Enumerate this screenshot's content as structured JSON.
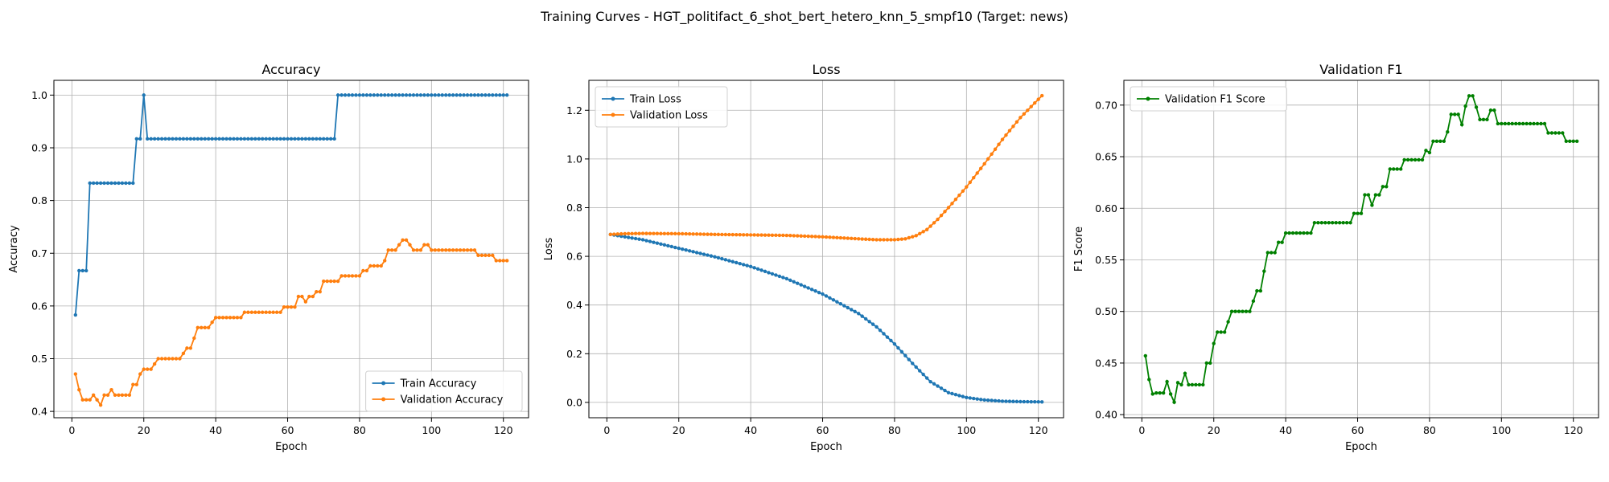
{
  "figure_title": "Training Curves - HGT_politifact_6_shot_bert_hetero_knn_5_smpf10 (Target: news)",
  "colors": {
    "train": "#1f77b4",
    "validation": "#ff7f0e",
    "f1": "#008000",
    "grid": "#b0b0b0"
  },
  "chart_data": [
    {
      "type": "line",
      "title": "Accuracy",
      "xlabel": "Epoch",
      "ylabel": "Accuracy",
      "xlim": [
        -5,
        127
      ],
      "ylim": [
        0.388,
        1.028
      ],
      "xticks": [
        0,
        20,
        40,
        60,
        80,
        100,
        120
      ],
      "yticks": [
        0.4,
        0.5,
        0.6,
        0.7,
        0.8,
        0.9,
        1.0
      ],
      "grid": true,
      "legend_loc": "lower-right",
      "series": [
        {
          "name": "Train Accuracy",
          "color": "#1f77b4",
          "segments": [
            [
              1,
              0.583
            ],
            [
              2,
              0.667
            ],
            [
              4,
              0.667
            ],
            [
              5,
              0.833
            ],
            [
              17,
              0.833
            ],
            [
              18,
              0.917
            ],
            [
              19,
              0.917
            ],
            [
              20,
              1.0
            ],
            [
              21,
              0.917
            ],
            [
              73,
              0.917
            ],
            [
              74,
              1.0
            ],
            [
              121,
              1.0
            ]
          ]
        },
        {
          "name": "Validation Accuracy",
          "color": "#ff7f0e",
          "points": [
            [
              1,
              0.471
            ],
            [
              2,
              0.441
            ],
            [
              3,
              0.422
            ],
            [
              5,
              0.422
            ],
            [
              6,
              0.431
            ],
            [
              7,
              0.422
            ],
            [
              8,
              0.412
            ],
            [
              9,
              0.431
            ],
            [
              10,
              0.431
            ],
            [
              11,
              0.441
            ],
            [
              12,
              0.431
            ],
            [
              16,
              0.431
            ],
            [
              17,
              0.451
            ],
            [
              18,
              0.451
            ],
            [
              19,
              0.471
            ],
            [
              20,
              0.48
            ],
            [
              22,
              0.48
            ],
            [
              23,
              0.49
            ],
            [
              24,
              0.5
            ],
            [
              30,
              0.5
            ],
            [
              31,
              0.51
            ],
            [
              32,
              0.52
            ],
            [
              33,
              0.52
            ],
            [
              34,
              0.539
            ],
            [
              35,
              0.559
            ],
            [
              38,
              0.559
            ],
            [
              39,
              0.569
            ],
            [
              40,
              0.578
            ],
            [
              47,
              0.578
            ],
            [
              48,
              0.588
            ],
            [
              58,
              0.588
            ],
            [
              59,
              0.598
            ],
            [
              62,
              0.598
            ],
            [
              63,
              0.618
            ],
            [
              64,
              0.618
            ],
            [
              65,
              0.608
            ],
            [
              66,
              0.618
            ],
            [
              67,
              0.618
            ],
            [
              68,
              0.627
            ],
            [
              69,
              0.627
            ],
            [
              70,
              0.647
            ],
            [
              74,
              0.647
            ],
            [
              75,
              0.657
            ],
            [
              80,
              0.657
            ],
            [
              81,
              0.667
            ],
            [
              82,
              0.667
            ],
            [
              83,
              0.676
            ],
            [
              86,
              0.676
            ],
            [
              87,
              0.686
            ],
            [
              88,
              0.706
            ],
            [
              90,
              0.706
            ],
            [
              91,
              0.716
            ],
            [
              92,
              0.725
            ],
            [
              93,
              0.725
            ],
            [
              94,
              0.716
            ],
            [
              95,
              0.706
            ],
            [
              97,
              0.706
            ],
            [
              98,
              0.716
            ],
            [
              99,
              0.716
            ],
            [
              100,
              0.706
            ],
            [
              112,
              0.706
            ],
            [
              113,
              0.696
            ],
            [
              117,
              0.696
            ],
            [
              118,
              0.686
            ],
            [
              121,
              0.686
            ]
          ]
        }
      ]
    },
    {
      "type": "line",
      "title": "Loss",
      "xlabel": "Epoch",
      "ylabel": "Loss",
      "xlim": [
        -5,
        127
      ],
      "ylim": [
        -0.063,
        1.323
      ],
      "xticks": [
        0,
        20,
        40,
        60,
        80,
        100,
        120
      ],
      "yticks": [
        0.0,
        0.2,
        0.4,
        0.6,
        0.8,
        1.0,
        1.2
      ],
      "grid": true,
      "legend_loc": "upper-left",
      "series": [
        {
          "name": "Train Loss",
          "color": "#1f77b4",
          "points": [
            [
              1,
              0.69
            ],
            [
              10,
              0.668
            ],
            [
              20,
              0.633
            ],
            [
              30,
              0.598
            ],
            [
              40,
              0.558
            ],
            [
              50,
              0.508
            ],
            [
              60,
              0.445
            ],
            [
              70,
              0.365
            ],
            [
              75,
              0.31
            ],
            [
              80,
              0.24
            ],
            [
              85,
              0.16
            ],
            [
              90,
              0.085
            ],
            [
              95,
              0.04
            ],
            [
              100,
              0.02
            ],
            [
              105,
              0.01
            ],
            [
              110,
              0.005
            ],
            [
              115,
              0.003
            ],
            [
              121,
              0.002
            ]
          ]
        },
        {
          "name": "Validation Loss",
          "color": "#ff7f0e",
          "points": [
            [
              1,
              0.69
            ],
            [
              5,
              0.693
            ],
            [
              10,
              0.694
            ],
            [
              20,
              0.693
            ],
            [
              30,
              0.69
            ],
            [
              40,
              0.688
            ],
            [
              50,
              0.686
            ],
            [
              60,
              0.68
            ],
            [
              70,
              0.672
            ],
            [
              75,
              0.668
            ],
            [
              80,
              0.668
            ],
            [
              83,
              0.672
            ],
            [
              86,
              0.685
            ],
            [
              89,
              0.71
            ],
            [
              92,
              0.752
            ],
            [
              95,
              0.8
            ],
            [
              100,
              0.885
            ],
            [
              105,
              0.98
            ],
            [
              110,
              1.08
            ],
            [
              115,
              1.17
            ],
            [
              121,
              1.26
            ]
          ]
        }
      ]
    },
    {
      "type": "line",
      "title": "Validation F1",
      "xlabel": "Epoch",
      "ylabel": "F1 Score",
      "xlim": [
        -5,
        127
      ],
      "ylim": [
        0.397,
        0.724
      ],
      "xticks": [
        0,
        20,
        40,
        60,
        80,
        100,
        120
      ],
      "yticks": [
        0.4,
        0.45,
        0.5,
        0.55,
        0.6,
        0.65,
        0.7
      ],
      "grid": true,
      "legend_loc": "upper-left",
      "series": [
        {
          "name": "Validation F1 Score",
          "color": "#008000",
          "points": [
            [
              1,
              0.457
            ],
            [
              2,
              0.434
            ],
            [
              3,
              0.42
            ],
            [
              4,
              0.421
            ],
            [
              6,
              0.421
            ],
            [
              7,
              0.432
            ],
            [
              8,
              0.42
            ],
            [
              9,
              0.412
            ],
            [
              10,
              0.431
            ],
            [
              11,
              0.429
            ],
            [
              12,
              0.44
            ],
            [
              13,
              0.429
            ],
            [
              17,
              0.429
            ],
            [
              18,
              0.45
            ],
            [
              19,
              0.45
            ],
            [
              20,
              0.469
            ],
            [
              21,
              0.48
            ],
            [
              23,
              0.48
            ],
            [
              24,
              0.49
            ],
            [
              25,
              0.5
            ],
            [
              30,
              0.5
            ],
            [
              31,
              0.51
            ],
            [
              32,
              0.52
            ],
            [
              33,
              0.52
            ],
            [
              34,
              0.539
            ],
            [
              35,
              0.557
            ],
            [
              37,
              0.557
            ],
            [
              38,
              0.567
            ],
            [
              39,
              0.567
            ],
            [
              40,
              0.576
            ],
            [
              47,
              0.576
            ],
            [
              48,
              0.586
            ],
            [
              58,
              0.586
            ],
            [
              59,
              0.595
            ],
            [
              61,
              0.595
            ],
            [
              62,
              0.613
            ],
            [
              63,
              0.613
            ],
            [
              64,
              0.603
            ],
            [
              65,
              0.613
            ],
            [
              66,
              0.613
            ],
            [
              67,
              0.621
            ],
            [
              68,
              0.621
            ],
            [
              69,
              0.638
            ],
            [
              72,
              0.638
            ],
            [
              73,
              0.647
            ],
            [
              78,
              0.647
            ],
            [
              79,
              0.656
            ],
            [
              80,
              0.654
            ],
            [
              81,
              0.665
            ],
            [
              84,
              0.665
            ],
            [
              85,
              0.674
            ],
            [
              86,
              0.691
            ],
            [
              88,
              0.691
            ],
            [
              89,
              0.681
            ],
            [
              90,
              0.699
            ],
            [
              91,
              0.709
            ],
            [
              92,
              0.709
            ],
            [
              93,
              0.698
            ],
            [
              94,
              0.686
            ],
            [
              96,
              0.686
            ],
            [
              97,
              0.695
            ],
            [
              98,
              0.695
            ],
            [
              99,
              0.682
            ],
            [
              111,
              0.682
            ],
            [
              112,
              0.682
            ],
            [
              113,
              0.673
            ],
            [
              117,
              0.673
            ],
            [
              118,
              0.665
            ],
            [
              121,
              0.665
            ]
          ]
        }
      ]
    }
  ]
}
